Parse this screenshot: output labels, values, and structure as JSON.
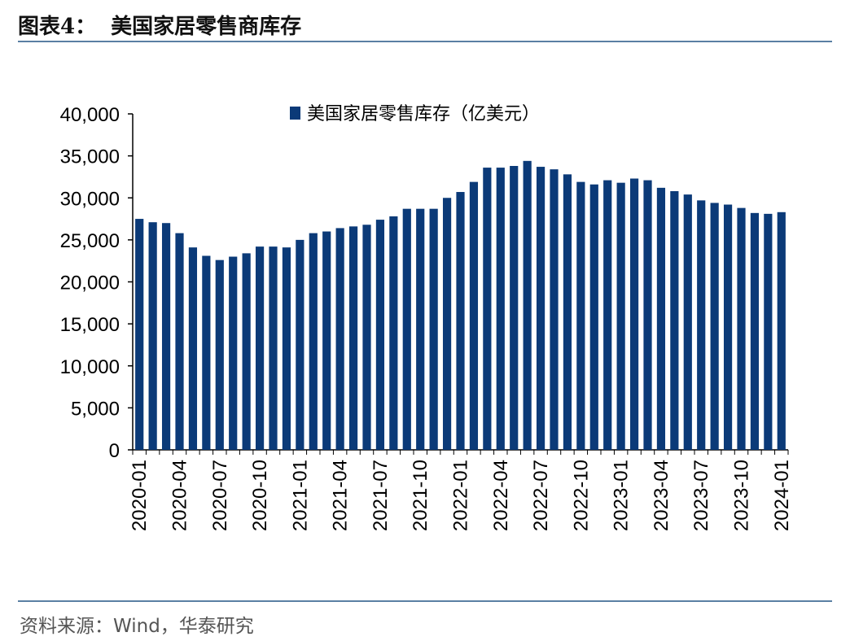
{
  "figure": {
    "label": "图表4：",
    "title": "美国家居零售商库存"
  },
  "source": "资料来源：Wind，华泰研究",
  "colors": {
    "bar": "#0b3a78",
    "rule": "#5a7fa3",
    "axis": "#000000"
  },
  "chart_data": {
    "type": "bar",
    "title": "",
    "xlabel": "",
    "ylabel": "",
    "ylim": [
      0,
      40000
    ],
    "yticks": [
      0,
      5000,
      10000,
      15000,
      20000,
      25000,
      30000,
      35000,
      40000
    ],
    "ytick_labels": [
      "0",
      "5,000",
      "10,000",
      "15,000",
      "20,000",
      "25,000",
      "30,000",
      "35,000",
      "40,000"
    ],
    "legend_position": "top-center",
    "categories": [
      "2020-01",
      "2020-02",
      "2020-03",
      "2020-04",
      "2020-05",
      "2020-06",
      "2020-07",
      "2020-08",
      "2020-09",
      "2020-10",
      "2020-11",
      "2020-12",
      "2021-01",
      "2021-02",
      "2021-03",
      "2021-04",
      "2021-05",
      "2021-06",
      "2021-07",
      "2021-08",
      "2021-09",
      "2021-10",
      "2021-11",
      "2021-12",
      "2022-01",
      "2022-02",
      "2022-03",
      "2022-04",
      "2022-05",
      "2022-06",
      "2022-07",
      "2022-08",
      "2022-09",
      "2022-10",
      "2022-11",
      "2022-12",
      "2023-01",
      "2023-02",
      "2023-03",
      "2023-04",
      "2023-05",
      "2023-06",
      "2023-07",
      "2023-08",
      "2023-09",
      "2023-10",
      "2023-11",
      "2023-12",
      "2024-01"
    ],
    "xtick_labels": [
      "2020-01",
      "2020-04",
      "2020-07",
      "2020-10",
      "2021-01",
      "2021-04",
      "2021-07",
      "2021-10",
      "2022-01",
      "2022-04",
      "2022-07",
      "2022-10",
      "2023-01",
      "2023-04",
      "2023-07",
      "2023-10",
      "2024-01"
    ],
    "series": [
      {
        "name": "美国家居零售库存（亿美元）",
        "values": [
          27500,
          27100,
          27000,
          25800,
          24100,
          23100,
          22600,
          23000,
          23400,
          24200,
          24200,
          24100,
          25000,
          25800,
          26000,
          26400,
          26600,
          26800,
          27400,
          27800,
          28700,
          28700,
          28700,
          30000,
          30700,
          31900,
          33600,
          33600,
          33800,
          34400,
          33700,
          33400,
          32800,
          31900,
          31600,
          32100,
          31800,
          32300,
          32100,
          31200,
          30800,
          30400,
          29700,
          29400,
          29200,
          28800,
          28200,
          28100,
          28300
        ]
      }
    ]
  }
}
